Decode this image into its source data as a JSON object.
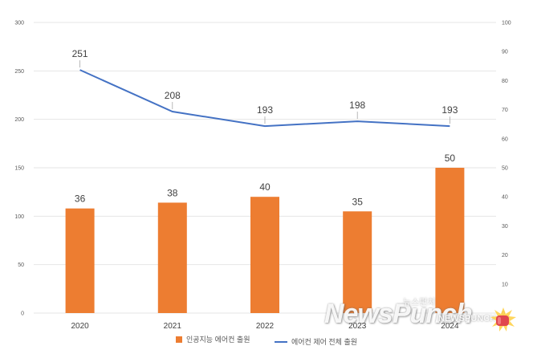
{
  "chart_data": {
    "type": "bar+line",
    "categories": [
      "2020",
      "2021",
      "2022",
      "2023",
      "2024"
    ],
    "series": [
      {
        "name": "인공지능 에어컨 출원",
        "type": "bar",
        "axis": "right",
        "values": [
          36,
          38,
          40,
          35,
          50
        ],
        "color": "#ED7D31"
      },
      {
        "name": "에어컨 제어 전체 출원",
        "type": "line",
        "axis": "left",
        "values": [
          251,
          208,
          193,
          198,
          193
        ],
        "color": "#4472C4"
      }
    ],
    "left_axis": {
      "ticks": [
        "0",
        "50",
        "100",
        "150",
        "200",
        "250",
        "300"
      ],
      "ylim": [
        0,
        300
      ]
    },
    "right_axis": {
      "ticks": [
        "0",
        "10",
        "20",
        "30",
        "40",
        "50",
        "60",
        "70",
        "80",
        "90",
        "100"
      ],
      "ylim": [
        0,
        100
      ]
    },
    "grid": true,
    "legend": "bottom"
  },
  "watermark": {
    "main": "NewsPunch",
    "korean": "뉴스펀치",
    "small": "NEWSPUNCH"
  }
}
